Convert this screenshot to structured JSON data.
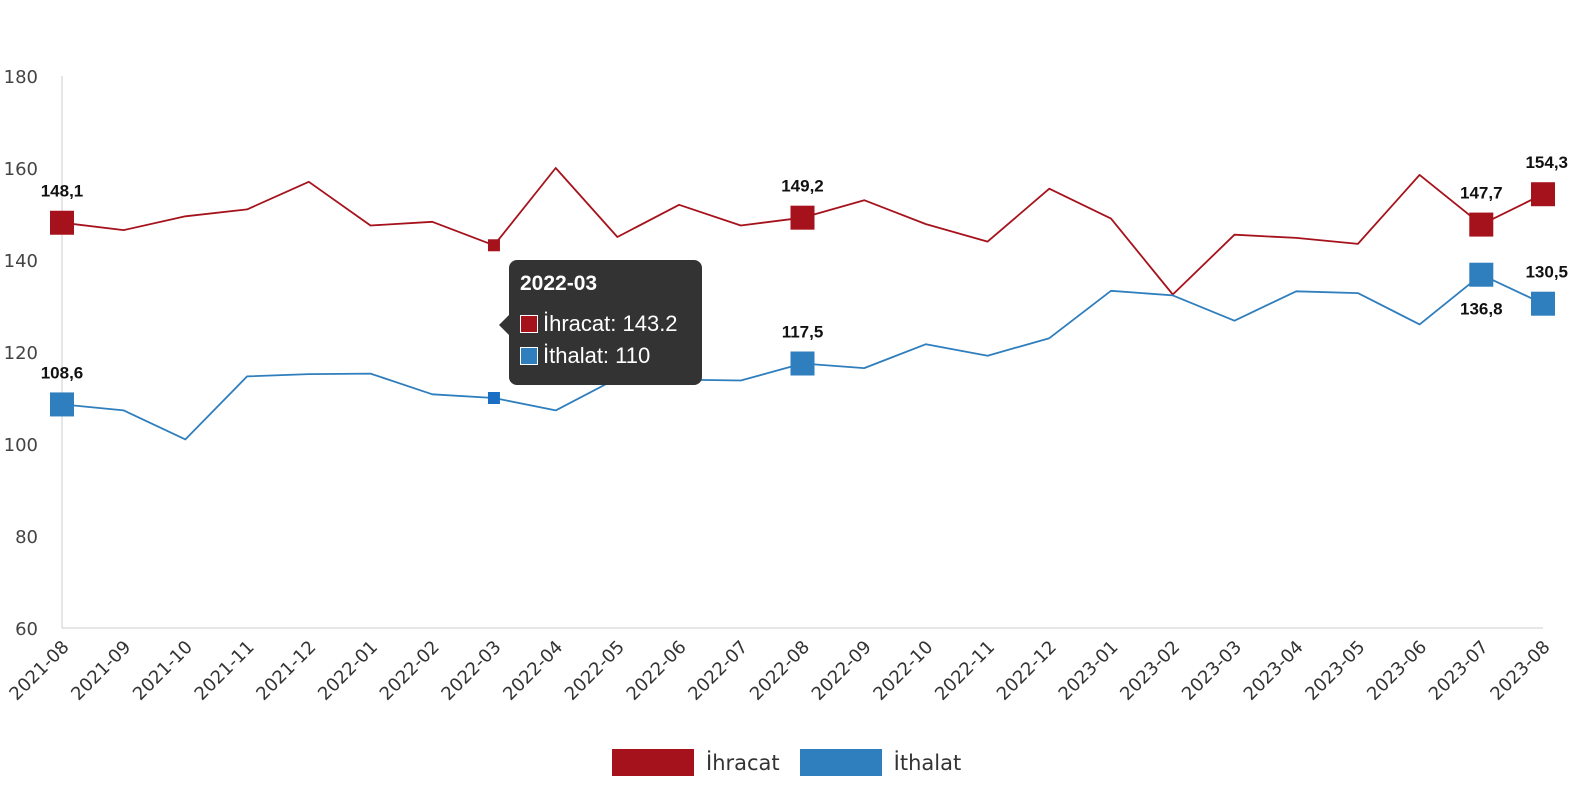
{
  "chart_data": {
    "type": "line",
    "categories": [
      "2021-08",
      "2021-09",
      "2021-10",
      "2021-11",
      "2021-12",
      "2022-01",
      "2022-02",
      "2022-03",
      "2022-04",
      "2022-05",
      "2022-06",
      "2022-07",
      "2022-08",
      "2022-09",
      "2022-10",
      "2022-11",
      "2022-12",
      "2023-01",
      "2023-02",
      "2023-03",
      "2023-04",
      "2023-05",
      "2023-06",
      "2023-07",
      "2023-08"
    ],
    "series": [
      {
        "name": "İhracat",
        "color": "#a6121c",
        "values": [
          148.1,
          146.5,
          149.5,
          151,
          157,
          147.5,
          148.3,
          143.2,
          160,
          145,
          152,
          147.5,
          149.2,
          153,
          147.8,
          144,
          155.5,
          149,
          132.5,
          145.5,
          144.8,
          143.5,
          158.5,
          147.7,
          154.3
        ],
        "labels": {
          "0": "148,1",
          "12": "149,2",
          "23": "147,7",
          "24": "154,3"
        }
      },
      {
        "name": "İthalat",
        "color": "#2f7ebd",
        "values": [
          108.6,
          107.3,
          101,
          114.7,
          115.2,
          115.3,
          110.8,
          110,
          107.3,
          114.3,
          114,
          113.8,
          117.5,
          116.5,
          121.7,
          119.2,
          123,
          133.3,
          132.3,
          126.8,
          133.2,
          132.8,
          126,
          136.8,
          130.5
        ],
        "labels": {
          "0": "108,6",
          "12": "117,5",
          "23": "136,8",
          "24": "130,5"
        }
      }
    ],
    "ylim": [
      60,
      180
    ],
    "yticks": [
      60,
      80,
      100,
      120,
      140,
      160,
      180
    ],
    "legend_position": "bottom-center",
    "grid": false
  },
  "legend": {
    "items": [
      {
        "label": "İhracat",
        "color": "#a6121c"
      },
      {
        "label": "İthalat",
        "color": "#2f7ebd"
      }
    ]
  },
  "tooltip": {
    "title": "2022-03",
    "rows": [
      {
        "label": "İhracat: 143.2",
        "color": "#a6121c"
      },
      {
        "label": "İthalat: 110",
        "color": "#2f7ebd"
      }
    ]
  }
}
